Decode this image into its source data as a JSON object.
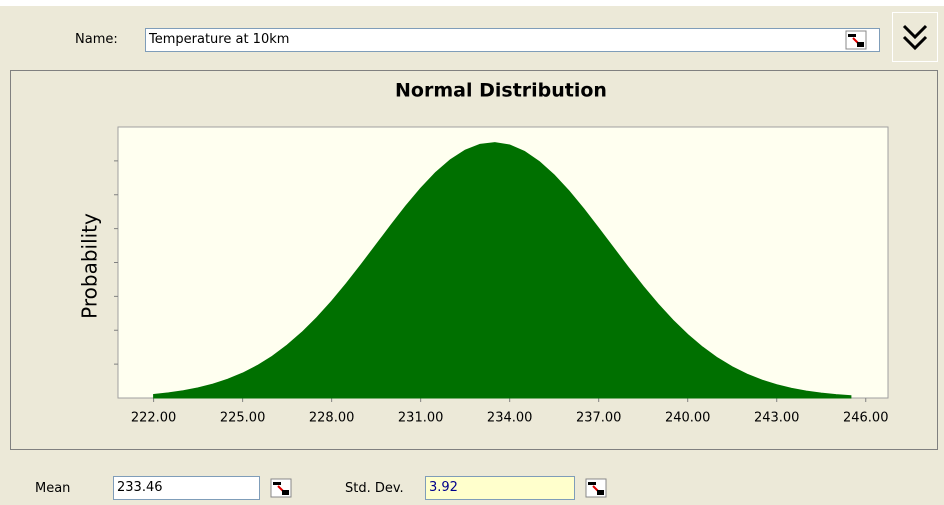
{
  "name_label": "Name:",
  "name_value": "Temperature at 10km",
  "mean_label": "Mean",
  "mean_value": "233.46",
  "std_label": "Std. Dev.",
  "std_value": "3.92",
  "chart_data": {
    "type": "area",
    "title": "Normal Distribution",
    "y_label": "Probability",
    "color": "#007000",
    "x": [
      222,
      222.5,
      223,
      223.5,
      224,
      224.5,
      225,
      225.5,
      226,
      226.5,
      227,
      227.5,
      228,
      228.5,
      229,
      229.5,
      230,
      230.5,
      231,
      231.5,
      232,
      232.5,
      233,
      233.5,
      234,
      234.5,
      235,
      235.5,
      236,
      236.5,
      237,
      237.5,
      238,
      238.5,
      239,
      239.5,
      240,
      240.5,
      241,
      241.5,
      242,
      242.5,
      243,
      243.5,
      244,
      244.5,
      245,
      245.5
    ],
    "values": [
      0.00142,
      0.00204,
      0.00289,
      0.00403,
      0.00553,
      0.00747,
      0.00991,
      0.01295,
      0.01664,
      0.02105,
      0.02618,
      0.03204,
      0.03858,
      0.04571,
      0.05328,
      0.06109,
      0.06894,
      0.07652,
      0.08358,
      0.08981,
      0.09495,
      0.09876,
      0.10107,
      0.10177,
      0.10081,
      0.09825,
      0.09421,
      0.08889,
      0.08251,
      0.07534,
      0.06769,
      0.05984,
      0.05205,
      0.04453,
      0.03749,
      0.03105,
      0.0253,
      0.02029,
      0.016,
      0.01243,
      0.00949,
      0.00713,
      0.00527,
      0.00383,
      0.00274,
      0.00193,
      0.00134,
      0.00091
    ],
    "xlim": [
      220.8,
      246.75
    ],
    "ylim": [
      0,
      0.108
    ],
    "xticks": [
      {
        "value": 222,
        "label": "222.00"
      },
      {
        "value": 225,
        "label": "225.00"
      },
      {
        "value": 228,
        "label": "228.00"
      },
      {
        "value": 231,
        "label": "231.00"
      },
      {
        "value": 234,
        "label": "234.00"
      },
      {
        "value": 237,
        "label": "237.00"
      },
      {
        "value": 240,
        "label": "240.00"
      },
      {
        "value": 243,
        "label": "243.00"
      },
      {
        "value": 246,
        "label": "246.00"
      }
    ],
    "yticks": [
      0.0135,
      0.027,
      0.0405,
      0.054,
      0.0675,
      0.081,
      0.0945
    ]
  }
}
